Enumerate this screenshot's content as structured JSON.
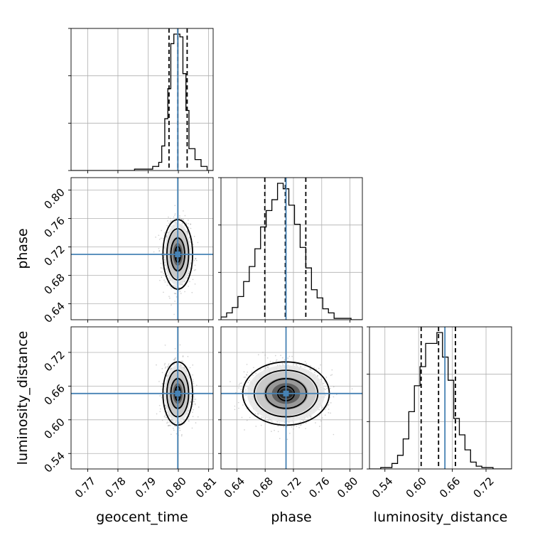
{
  "chart_data": {
    "type": "corner",
    "parameters": [
      "geocent_time",
      "phase",
      "luminosity_distance"
    ],
    "axis_labels": {
      "geocent_time": "geocent_time",
      "phase": "phase",
      "luminosity_distance": "luminosity_distance"
    },
    "ranges": {
      "geocent_time": [
        0.7645,
        0.8115
      ],
      "phase": [
        0.6175,
        0.8175
      ],
      "luminosity_distance": [
        0.5125,
        0.7655
      ]
    },
    "ticks": {
      "geocent_time": [
        0.77,
        0.78,
        0.79,
        0.8,
        0.81
      ],
      "phase": [
        0.64,
        0.68,
        0.72,
        0.76,
        0.8
      ],
      "luminosity_distance": [
        0.54,
        0.6,
        0.66,
        0.72
      ]
    },
    "tick_labels": {
      "geocent_time": [
        "0.77",
        "0.78",
        "0.79",
        "0.80",
        "0.81"
      ],
      "phase": [
        "0.64",
        "0.68",
        "0.72",
        "0.76",
        "0.80"
      ],
      "luminosity_distance": [
        "0.54",
        "0.60",
        "0.66",
        "0.72"
      ]
    },
    "truths": {
      "geocent_time": 0.7998,
      "phase": 0.7095,
      "luminosity_distance": 0.6468
    },
    "quantiles": {
      "geocent_time": [
        0.7969,
        0.7998,
        0.8029
      ],
      "phase": [
        0.6795,
        0.7085,
        0.7375
      ],
      "luminosity_distance": [
        0.6045,
        0.6355,
        0.6655
      ]
    },
    "histograms": {
      "geocent_time": {
        "edges": [
          0.7645,
          0.7655,
          0.7665,
          0.7675,
          0.7685,
          0.7695,
          0.7705,
          0.7715,
          0.7725,
          0.7735,
          0.7745,
          0.7755,
          0.7765,
          0.7775,
          0.7785,
          0.7795,
          0.7805,
          0.7815,
          0.7825,
          0.7835,
          0.7845,
          0.7855,
          0.7865,
          0.7875,
          0.7885,
          0.7895,
          0.7905,
          0.7915,
          0.7925,
          0.7935,
          0.7945,
          0.7955,
          0.7965,
          0.7975,
          0.7985,
          0.7995,
          0.8005,
          0.8015,
          0.8025,
          0.8035,
          0.8045,
          0.8055,
          0.8065,
          0.8075,
          0.8085,
          0.8095,
          0.8105,
          0.8115
        ],
        "counts": [
          0,
          0,
          0,
          0,
          0,
          0,
          0,
          0,
          0,
          0,
          0,
          0,
          0,
          0,
          0,
          0,
          0,
          0,
          0,
          0,
          0,
          1,
          1,
          1,
          1,
          1,
          1,
          3,
          3,
          6,
          18,
          38,
          60,
          93,
          100,
          100,
          98,
          71,
          44,
          16,
          16,
          8,
          8,
          3,
          3,
          0,
          0
        ]
      },
      "phase": {
        "edges": [
          0.6175,
          0.6255,
          0.6335,
          0.6415,
          0.6495,
          0.6575,
          0.6655,
          0.6735,
          0.6815,
          0.6895,
          0.6975,
          0.7055,
          0.7135,
          0.7215,
          0.7295,
          0.7375,
          0.7455,
          0.7535,
          0.7615,
          0.7695,
          0.7775,
          0.7855,
          0.7935,
          0.8015,
          0.8095,
          0.8175
        ],
        "counts": [
          2,
          5,
          9,
          17,
          28,
          39,
          52,
          68,
          80,
          88,
          100,
          96,
          84,
          70,
          53,
          38,
          22,
          16,
          8,
          5,
          1,
          1,
          1,
          0,
          0
        ]
      },
      "luminosity_distance": {
        "edges": [
          0.5125,
          0.5225,
          0.5325,
          0.5425,
          0.5525,
          0.5625,
          0.5725,
          0.5825,
          0.5925,
          0.6025,
          0.6125,
          0.6225,
          0.6325,
          0.6425,
          0.6525,
          0.6625,
          0.6725,
          0.6825,
          0.6925,
          0.7025,
          0.7125,
          0.7225,
          0.7325,
          0.7425,
          0.7525,
          0.7655
        ],
        "counts": [
          0,
          0,
          1,
          1,
          4,
          10,
          22,
          42,
          61,
          75,
          92,
          92,
          100,
          82,
          65,
          37,
          25,
          14,
          5,
          2,
          1,
          1,
          0,
          0,
          0
        ]
      }
    },
    "scatter_2d": [
      {
        "x": "geocent_time",
        "y": "phase",
        "center": [
          0.7998,
          0.7095
        ],
        "spread": [
          0.002,
          0.02
        ]
      },
      {
        "x": "geocent_time",
        "y": "luminosity_distance",
        "center": [
          0.7998,
          0.6468
        ],
        "spread": [
          0.002,
          0.023
        ]
      },
      {
        "x": "phase",
        "y": "luminosity_distance",
        "center": [
          0.7095,
          0.6468
        ],
        "spread": [
          0.025,
          0.023
        ]
      }
    ],
    "grid": true,
    "colors": {
      "truth": "#4682b4",
      "hist": "#000000",
      "quantile": "#000000",
      "contour": "#000000",
      "points": "#9a9a9a",
      "grid": "#b0b0b0"
    }
  }
}
